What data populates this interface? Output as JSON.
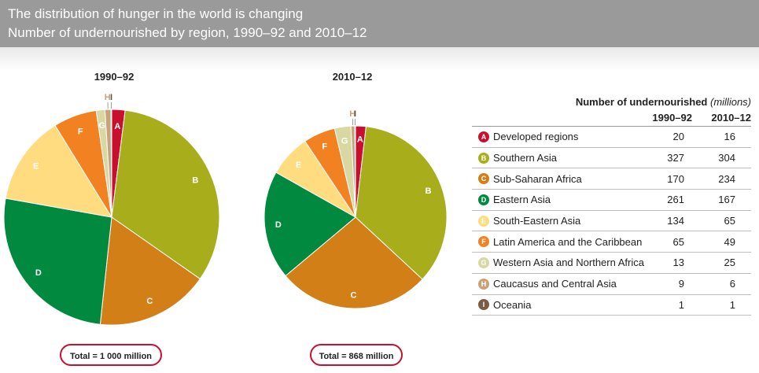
{
  "header": {
    "title": "The distribution of hunger in the world is changing",
    "subtitle": "Number of undernourished by region, 1990–92 and 2010–12"
  },
  "chart_data": [
    {
      "type": "pie",
      "title": "1990–92",
      "total_label": "Total = 1 000 million",
      "slices": [
        {
          "letter": "A",
          "name": "Developed regions",
          "value": 20,
          "color": "#c8102e"
        },
        {
          "letter": "B",
          "name": "Southern Asia",
          "value": 327,
          "color": "#a8ad1b"
        },
        {
          "letter": "C",
          "name": "Sub-Saharan Africa",
          "value": 170,
          "color": "#d17f16"
        },
        {
          "letter": "D",
          "name": "Eastern Asia",
          "value": 261,
          "color": "#00893f"
        },
        {
          "letter": "E",
          "name": "South-Eastern Asia",
          "value": 134,
          "color": "#fedc7f"
        },
        {
          "letter": "F",
          "name": "Latin America and the Caribbean",
          "value": 65,
          "color": "#f28122"
        },
        {
          "letter": "G",
          "name": "Western Asia and Northern Africa",
          "value": 13,
          "color": "#d9d8a3"
        },
        {
          "letter": "H",
          "name": "Caucasus and Central Asia",
          "value": 9,
          "color": "#c8a37a"
        },
        {
          "letter": "I",
          "name": "Oceania",
          "value": 1,
          "color": "#7a5b45"
        }
      ]
    },
    {
      "type": "pie",
      "title": "2010–12",
      "total_label": "Total = 868 million",
      "slices": [
        {
          "letter": "A",
          "name": "Developed regions",
          "value": 16,
          "color": "#c8102e"
        },
        {
          "letter": "B",
          "name": "Southern Asia",
          "value": 304,
          "color": "#a8ad1b"
        },
        {
          "letter": "C",
          "name": "Sub-Saharan Africa",
          "value": 234,
          "color": "#d17f16"
        },
        {
          "letter": "D",
          "name": "Eastern Asia",
          "value": 167,
          "color": "#00893f"
        },
        {
          "letter": "E",
          "name": "South-Eastern Asia",
          "value": 65,
          "color": "#fedc7f"
        },
        {
          "letter": "F",
          "name": "Latin America and the Caribbean",
          "value": 49,
          "color": "#f28122"
        },
        {
          "letter": "G",
          "name": "Western Asia and Northern Africa",
          "value": 25,
          "color": "#d9d8a3"
        },
        {
          "letter": "H",
          "name": "Caucasus and Central Asia",
          "value": 6,
          "color": "#c8a37a"
        },
        {
          "letter": "I",
          "name": "Oceania",
          "value": 1,
          "color": "#7a5b45"
        }
      ]
    }
  ],
  "legend": {
    "heading": "Number of undernourished",
    "unit": "(millions)",
    "col1": "1990–92",
    "col2": "2010–12"
  }
}
